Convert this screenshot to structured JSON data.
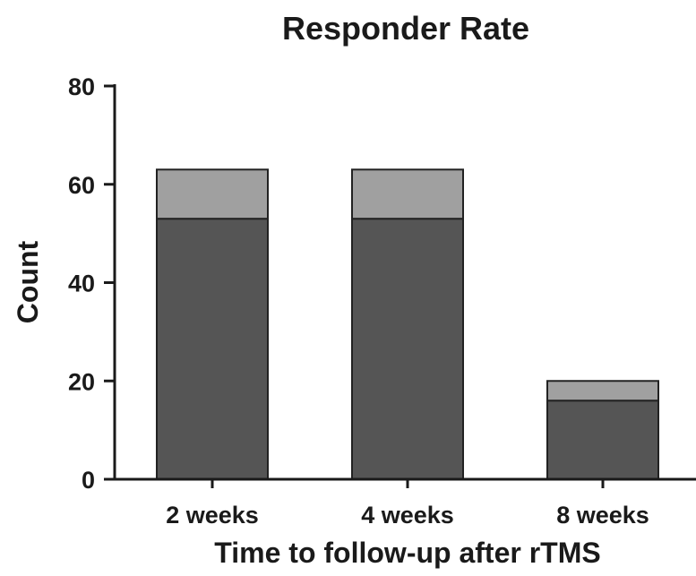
{
  "chart_data": {
    "type": "bar",
    "stacked": true,
    "title": "Responder Rate",
    "xlabel": "Time to follow-up after rTMS",
    "ylabel": "Count",
    "categories": [
      "2 weeks",
      "4 weeks",
      "8 weeks"
    ],
    "series": [
      {
        "values": [
          53,
          53,
          16
        ],
        "color": "#555555"
      },
      {
        "values": [
          10,
          10,
          4
        ],
        "color": "#a0a0a0"
      }
    ],
    "ylim": [
      0,
      80
    ],
    "yticks": [
      0,
      20,
      40,
      60,
      80
    ],
    "grid": false,
    "legend": "none",
    "colors": {
      "axis": "#1a1a1a",
      "bar_edge": "#222222"
    }
  }
}
